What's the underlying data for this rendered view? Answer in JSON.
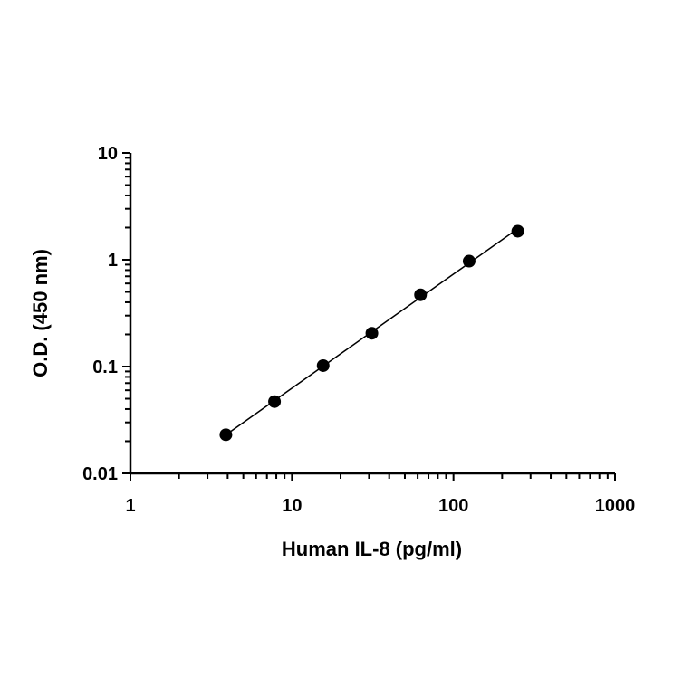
{
  "chart_data": {
    "type": "scatter",
    "title": "",
    "xlabel": "Human IL-8 (pg/ml)",
    "ylabel": "O.D. (450 nm)",
    "x_scale": "log",
    "y_scale": "log",
    "xlim": [
      1,
      1000
    ],
    "ylim": [
      0.01,
      10
    ],
    "x_ticks": [
      {
        "value": 1,
        "label": "1"
      },
      {
        "value": 10,
        "label": "10"
      },
      {
        "value": 100,
        "label": "100"
      },
      {
        "value": 1000,
        "label": "1000"
      }
    ],
    "y_ticks": [
      {
        "value": 0.01,
        "label": "0.01"
      },
      {
        "value": 0.1,
        "label": "0.1"
      },
      {
        "value": 1,
        "label": "1"
      },
      {
        "value": 10,
        "label": "10"
      }
    ],
    "grid": false,
    "legend": "none",
    "series": [
      {
        "x": [
          3.9,
          7.8,
          15.6,
          31.25,
          62.5,
          125,
          250
        ],
        "y": [
          0.023,
          0.047,
          0.102,
          0.205,
          0.47,
          0.97,
          1.85
        ],
        "marker": "circle",
        "line": "fitted",
        "color": "#000000"
      }
    ]
  }
}
